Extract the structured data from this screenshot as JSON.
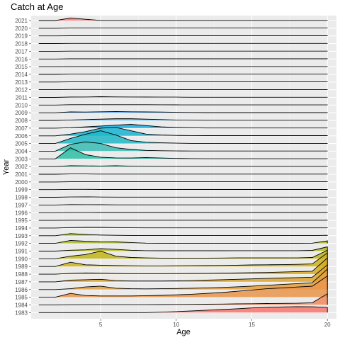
{
  "chart_data": {
    "type": "ridgeline",
    "title": "Catch at Age",
    "xlabel": "Age",
    "ylabel": "Year",
    "xlim": [
      0.4,
      20.6
    ],
    "x_ticks": [
      5,
      10,
      15,
      20
    ],
    "grid": true,
    "legend": "none",
    "background": "#ebebeb",
    "ages": [
      1,
      2,
      3,
      4,
      5,
      6,
      7,
      8,
      9,
      10,
      11,
      12,
      13,
      14,
      15,
      16,
      17,
      18,
      19,
      20
    ],
    "years": [
      "1983",
      "1984",
      "1985",
      "1986",
      "1987",
      "1988",
      "1989",
      "1990",
      "1991",
      "1992",
      "1993",
      "1994",
      "1995",
      "1996",
      "1997",
      "1998",
      "1999",
      "2000",
      "2001",
      "2002",
      "2003",
      "2004",
      "2005",
      "2006",
      "2007",
      "2008",
      "2009",
      "2010",
      "2011",
      "2012",
      "2013",
      "2014",
      "2015",
      "2016",
      "2017",
      "2018",
      "2019",
      "2020",
      "2021"
    ],
    "series": [
      {
        "year": "1983",
        "color": "#f8766d",
        "values": [
          0,
          0,
          0,
          0,
          0,
          0,
          0,
          0,
          0.05,
          0.12,
          0.2,
          0.28,
          0.36,
          0.45,
          0.55,
          0.62,
          0.67,
          0.7,
          0.68,
          0.62
        ]
      },
      {
        "year": "1984",
        "color": "#f08a5d",
        "values": [
          0,
          0,
          0.02,
          0.03,
          0.03,
          0.03,
          0.03,
          0.03,
          0.04,
          0.05,
          0.06,
          0.08,
          0.1,
          0.12,
          0.14,
          0.16,
          0.18,
          0.2,
          0.25,
          1.3
        ]
      },
      {
        "year": "1985",
        "color": "#e9954a",
        "values": [
          0,
          0,
          0.45,
          0.2,
          0.15,
          0.15,
          0.15,
          0.18,
          0.22,
          0.28,
          0.35,
          0.45,
          0.55,
          0.7,
          0.85,
          1.0,
          1.1,
          1.2,
          1.3,
          2.5
        ]
      },
      {
        "year": "1986",
        "color": "#e59f3d",
        "values": [
          0,
          0,
          0.1,
          0.3,
          0.4,
          0.15,
          0.1,
          0.08,
          0.1,
          0.12,
          0.15,
          0.2,
          0.25,
          0.32,
          0.4,
          0.5,
          0.6,
          0.7,
          0.8,
          2.4
        ]
      },
      {
        "year": "1987",
        "color": "#dda42e",
        "values": [
          0,
          0,
          0.2,
          0.25,
          0.3,
          0.15,
          0.1,
          0.1,
          0.1,
          0.12,
          0.15,
          0.2,
          0.25,
          0.3,
          0.35,
          0.4,
          0.45,
          0.5,
          0.55,
          2.0
        ]
      },
      {
        "year": "1988",
        "color": "#d6ab22",
        "values": [
          0,
          0,
          0.1,
          0.15,
          0.12,
          0.08,
          0.06,
          0.06,
          0.06,
          0.07,
          0.08,
          0.1,
          0.12,
          0.15,
          0.18,
          0.2,
          0.25,
          0.3,
          0.35,
          1.9
        ]
      },
      {
        "year": "1989",
        "color": "#ccb01a",
        "values": [
          0,
          0,
          0.5,
          0.2,
          0.15,
          0.1,
          0.08,
          0.07,
          0.07,
          0.08,
          0.09,
          0.1,
          0.12,
          0.15,
          0.18,
          0.2,
          0.22,
          0.25,
          0.3,
          1.6
        ]
      },
      {
        "year": "1990",
        "color": "#c1b416",
        "values": [
          0,
          0,
          0.3,
          0.5,
          0.9,
          0.3,
          0.15,
          0.1,
          0.08,
          0.08,
          0.08,
          0.08,
          0.09,
          0.1,
          0.1,
          0.1,
          0.1,
          0.1,
          0.15,
          1.0
        ]
      },
      {
        "year": "1991",
        "color": "#b6b81a",
        "values": [
          0,
          0,
          0.1,
          0.15,
          0.3,
          0.2,
          0.1,
          0.05,
          0.04,
          0.04,
          0.04,
          0.04,
          0.04,
          0.05,
          0.05,
          0.05,
          0.05,
          0.05,
          0.08,
          0.5
        ]
      },
      {
        "year": "1992",
        "color": "#aabb22",
        "values": [
          0,
          0,
          0.35,
          0.25,
          0.2,
          0.18,
          0.1,
          0.03,
          0.02,
          0.02,
          0.02,
          0.02,
          0.02,
          0.02,
          0.02,
          0.02,
          0.02,
          0.02,
          0.03,
          0.3
        ]
      },
      {
        "year": "1993",
        "color": "#9dbe2c",
        "values": [
          0,
          0,
          0.25,
          0.15,
          0.08,
          0.05,
          0.03,
          0.02,
          0.02,
          0.02,
          0.02,
          0.02,
          0.02,
          0.02,
          0.02,
          0.02,
          0.02,
          0.02,
          0.02,
          0.05
        ]
      },
      {
        "year": "1994",
        "color": "#8fc036",
        "values": [
          0,
          0,
          0.05,
          0.08,
          0.08,
          0.05,
          0.03,
          0.02,
          0.02,
          0.02,
          0.02,
          0.02,
          0.02,
          0.02,
          0.02,
          0.02,
          0.02,
          0.02,
          0.02,
          0.02
        ]
      },
      {
        "year": "1995",
        "color": "#7fc240",
        "values": [
          0,
          0,
          0.02,
          0.02,
          0.02,
          0.02,
          0.02,
          0.02,
          0.02,
          0.02,
          0.02,
          0.02,
          0.02,
          0.02,
          0.02,
          0.02,
          0.02,
          0.02,
          0.02,
          0.02
        ]
      },
      {
        "year": "1996",
        "color": "#6ec34b",
        "values": [
          0,
          0,
          0.03,
          0.03,
          0.02,
          0.02,
          0.02,
          0.02,
          0.02,
          0.02,
          0.02,
          0.02,
          0.02,
          0.02,
          0.02,
          0.02,
          0.02,
          0.02,
          0.02,
          0.02
        ]
      },
      {
        "year": "1997",
        "color": "#5bc456",
        "values": [
          0,
          0,
          0.05,
          0.04,
          0.03,
          0.02,
          0.02,
          0.02,
          0.02,
          0.02,
          0.02,
          0.02,
          0.02,
          0.02,
          0.02,
          0.02,
          0.02,
          0.02,
          0.02,
          0.02
        ]
      },
      {
        "year": "1998",
        "color": "#46c462",
        "values": [
          0,
          0,
          0.04,
          0.05,
          0.03,
          0.02,
          0.02,
          0.02,
          0.02,
          0.02,
          0.02,
          0.02,
          0.02,
          0.02,
          0.02,
          0.02,
          0.02,
          0.02,
          0.02,
          0.02
        ]
      },
      {
        "year": "1999",
        "color": "#2ec46f",
        "values": [
          0,
          0,
          0.03,
          0.03,
          0.02,
          0.02,
          0.02,
          0.02,
          0.02,
          0.02,
          0.02,
          0.02,
          0.02,
          0.02,
          0.02,
          0.02,
          0.02,
          0.02,
          0.02,
          0.02
        ]
      },
      {
        "year": "2000",
        "color": "#1fc37c",
        "values": [
          0,
          0,
          0.02,
          0.02,
          0.02,
          0.02,
          0.02,
          0.02,
          0.02,
          0.02,
          0.02,
          0.02,
          0.02,
          0.02,
          0.02,
          0.02,
          0.02,
          0.02,
          0.02,
          0.02
        ]
      },
      {
        "year": "2001",
        "color": "#1cc28a",
        "values": [
          0,
          0,
          0.03,
          0.03,
          0.02,
          0.02,
          0.02,
          0.02,
          0.02,
          0.02,
          0.02,
          0.02,
          0.02,
          0.02,
          0.02,
          0.02,
          0.02,
          0.02,
          0.02,
          0.02
        ]
      },
      {
        "year": "2002",
        "color": "#23c098",
        "values": [
          0,
          0,
          0.1,
          0.08,
          0.06,
          0.1,
          0.05,
          0.03,
          0.02,
          0.02,
          0.02,
          0.02,
          0.02,
          0.02,
          0.02,
          0.02,
          0.02,
          0.02,
          0.02,
          0.02
        ]
      },
      {
        "year": "2003",
        "color": "#2fbea6",
        "values": [
          0,
          0,
          1.3,
          0.5,
          0.2,
          0.12,
          0.1,
          0.15,
          0.1,
          0.05,
          0.03,
          0.02,
          0.02,
          0.02,
          0.02,
          0.02,
          0.02,
          0.02,
          0.02,
          0.02
        ]
      },
      {
        "year": "2004",
        "color": "#3bbcb4",
        "values": [
          0,
          0,
          0.8,
          1.1,
          0.9,
          0.4,
          0.2,
          0.1,
          0.05,
          0.03,
          0.02,
          0.02,
          0.02,
          0.02,
          0.02,
          0.02,
          0.02,
          0.02,
          0.02,
          0.02
        ]
      },
      {
        "year": "2005",
        "color": "#1fb8c5",
        "values": [
          0,
          0,
          0.6,
          1.1,
          1.5,
          1.0,
          0.35,
          0.15,
          0.08,
          0.04,
          0.02,
          0.02,
          0.02,
          0.02,
          0.02,
          0.02,
          0.02,
          0.02,
          0.02,
          0.02
        ]
      },
      {
        "year": "2006",
        "color": "#17b4d4",
        "values": [
          0,
          0,
          0.2,
          0.5,
          0.9,
          1.0,
          0.6,
          0.2,
          0.1,
          0.05,
          0.03,
          0.02,
          0.02,
          0.02,
          0.02,
          0.02,
          0.02,
          0.02,
          0.02,
          0.02
        ]
      },
      {
        "year": "2007",
        "color": "#18aee0",
        "values": [
          0,
          0,
          0.05,
          0.15,
          0.25,
          0.35,
          0.45,
          0.3,
          0.15,
          0.08,
          0.04,
          0.02,
          0.02,
          0.02,
          0.02,
          0.02,
          0.02,
          0.02,
          0.02,
          0.02
        ]
      },
      {
        "year": "2008",
        "color": "#2da7ea",
        "values": [
          0,
          0,
          0.05,
          0.1,
          0.15,
          0.2,
          0.2,
          0.15,
          0.1,
          0.05,
          0.03,
          0.02,
          0.02,
          0.02,
          0.02,
          0.02,
          0.02,
          0.02,
          0.02,
          0.02
        ]
      },
      {
        "year": "2009",
        "color": "#459ff3",
        "values": [
          0,
          0,
          0.1,
          0.08,
          0.12,
          0.15,
          0.12,
          0.1,
          0.08,
          0.05,
          0.03,
          0.02,
          0.02,
          0.02,
          0.02,
          0.02,
          0.02,
          0.02,
          0.02,
          0.02
        ]
      },
      {
        "year": "2010",
        "color": "#5c96f8",
        "values": [
          0,
          0,
          0.05,
          0.05,
          0.05,
          0.05,
          0.05,
          0.05,
          0.04,
          0.03,
          0.02,
          0.02,
          0.02,
          0.02,
          0.02,
          0.02,
          0.02,
          0.02,
          0.02,
          0.02
        ]
      },
      {
        "year": "2011",
        "color": "#728cfb",
        "values": [
          0,
          0,
          0.04,
          0.05,
          0.08,
          0.06,
          0.05,
          0.04,
          0.03,
          0.03,
          0.02,
          0.02,
          0.02,
          0.02,
          0.02,
          0.02,
          0.02,
          0.02,
          0.02,
          0.02
        ]
      },
      {
        "year": "2012",
        "color": "#8783fc",
        "values": [
          0,
          0,
          0.03,
          0.03,
          0.03,
          0.03,
          0.03,
          0.03,
          0.03,
          0.02,
          0.02,
          0.02,
          0.02,
          0.02,
          0.02,
          0.02,
          0.02,
          0.02,
          0.02,
          0.02
        ]
      },
      {
        "year": "2013",
        "color": "#9a7afb",
        "values": [
          0,
          0,
          0.02,
          0.02,
          0.02,
          0.02,
          0.02,
          0.02,
          0.02,
          0.02,
          0.02,
          0.02,
          0.02,
          0.02,
          0.02,
          0.02,
          0.02,
          0.02,
          0.02,
          0.02
        ]
      },
      {
        "year": "2014",
        "color": "#ab72f8",
        "values": [
          0,
          0,
          0.02,
          0.02,
          0.02,
          0.02,
          0.02,
          0.02,
          0.02,
          0.02,
          0.02,
          0.02,
          0.02,
          0.02,
          0.02,
          0.02,
          0.02,
          0.02,
          0.02,
          0.02
        ]
      },
      {
        "year": "2015",
        "color": "#bb6bf3",
        "values": [
          0,
          0,
          0.02,
          0.02,
          0.02,
          0.02,
          0.02,
          0.02,
          0.02,
          0.02,
          0.02,
          0.02,
          0.02,
          0.02,
          0.02,
          0.02,
          0.02,
          0.02,
          0.02,
          0.02
        ]
      },
      {
        "year": "2016",
        "color": "#c866ec",
        "values": [
          0,
          0,
          0.02,
          0.02,
          0.02,
          0.02,
          0.02,
          0.02,
          0.02,
          0.02,
          0.02,
          0.02,
          0.02,
          0.02,
          0.02,
          0.02,
          0.02,
          0.02,
          0.02,
          0.02
        ]
      },
      {
        "year": "2017",
        "color": "#d463e3",
        "values": [
          0,
          0,
          0.02,
          0.02,
          0.02,
          0.02,
          0.02,
          0.02,
          0.02,
          0.02,
          0.02,
          0.02,
          0.02,
          0.02,
          0.02,
          0.02,
          0.02,
          0.02,
          0.02,
          0.02
        ]
      },
      {
        "year": "2018",
        "color": "#de63d8",
        "values": [
          0,
          0,
          0.02,
          0.02,
          0.02,
          0.02,
          0.02,
          0.02,
          0.02,
          0.02,
          0.02,
          0.02,
          0.02,
          0.02,
          0.02,
          0.02,
          0.02,
          0.02,
          0.02,
          0.02
        ]
      },
      {
        "year": "2019",
        "color": "#e665cb",
        "values": [
          0,
          0,
          0.02,
          0.02,
          0.02,
          0.02,
          0.02,
          0.02,
          0.02,
          0.02,
          0.02,
          0.02,
          0.02,
          0.02,
          0.02,
          0.02,
          0.02,
          0.02,
          0.02,
          0.02
        ]
      },
      {
        "year": "2020",
        "color": "#ec69bd",
        "values": [
          0,
          0,
          0.02,
          0.02,
          0.02,
          0.02,
          0.02,
          0.02,
          0.02,
          0.02,
          0.02,
          0.02,
          0.02,
          0.02,
          0.02,
          0.02,
          0.02,
          0.02,
          0.02,
          0.02
        ]
      },
      {
        "year": "2021",
        "color": "#f8766d",
        "values": [
          0,
          0,
          0.3,
          0.15,
          0.02,
          0.02,
          0.02,
          0.02,
          0.02,
          0.02,
          0.02,
          0.02,
          0.02,
          0.02,
          0.02,
          0.02,
          0.02,
          0.02,
          0.02,
          0.02
        ]
      }
    ]
  }
}
